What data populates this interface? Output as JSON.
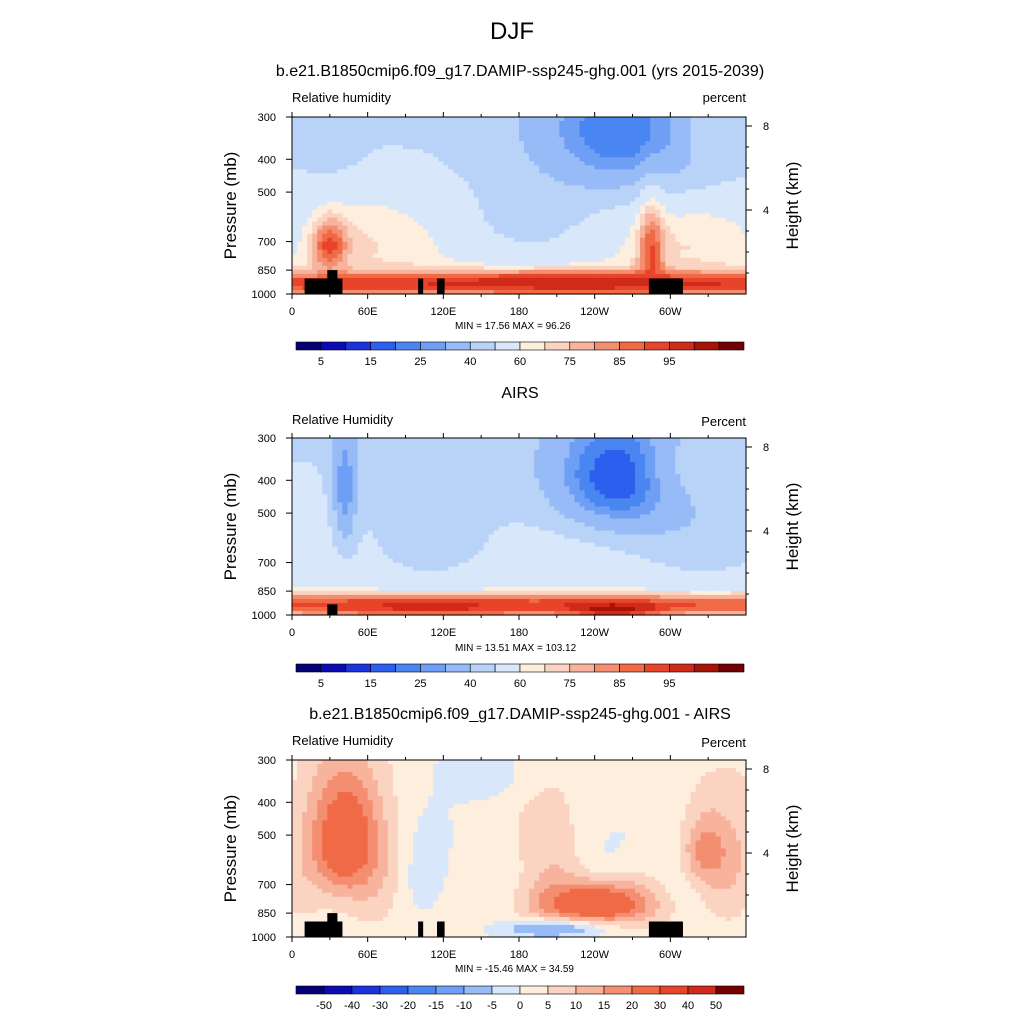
{
  "main_title": "DJF",
  "chart_data": [
    {
      "type": "heatmap",
      "title": "b.e21.B1850cmip6.f09_g17.DAMIP-ssp245-ghg.001 (yrs 2015-2039)",
      "variable_label": "Relative humidity",
      "units_label": "percent",
      "ylabel": "Pressure (mb)",
      "y2label": "Height (km)",
      "x_ticks": [
        "0",
        "60E",
        "120E",
        "180",
        "120W",
        "60W"
      ],
      "x_tick_values": [
        0,
        60,
        120,
        180,
        240,
        300
      ],
      "x_range": [
        0,
        360
      ],
      "y_ticks": [
        "300",
        "400",
        "500",
        "700",
        "850",
        "1000"
      ],
      "y_tick_values": [
        300,
        400,
        500,
        700,
        850,
        1000
      ],
      "y_range": [
        300,
        1000
      ],
      "y2_ticks": [
        "8",
        "4"
      ],
      "y2_tick_values": [
        8,
        4
      ],
      "stats_text": "MIN =  17.56  MAX =  96.26",
      "min": 17.56,
      "max": 96.26,
      "colorbar_labels": [
        "5",
        "15",
        "25",
        "40",
        "60",
        "75",
        "85",
        "95"
      ],
      "colorbar_levels": [
        0,
        5,
        10,
        15,
        20,
        25,
        30,
        40,
        50,
        60,
        65,
        70,
        75,
        80,
        85,
        90,
        95,
        100
      ],
      "terrain_blocks": [
        [
          10,
          40,
          900
        ],
        [
          28,
          36,
          850
        ],
        [
          100,
          104,
          900
        ],
        [
          115,
          121,
          900
        ],
        [
          283,
          310,
          900
        ]
      ],
      "field_features": [
        {
          "lon": 260,
          "p": 330,
          "value": 20,
          "rlon": 70,
          "rp": 160
        },
        {
          "lon": 30,
          "p": 330,
          "value": 45,
          "rlon": 25,
          "rp": 110
        },
        {
          "lon": 330,
          "p": 320,
          "value": 45,
          "rlon": 20,
          "rp": 90
        },
        {
          "lon": 30,
          "p": 720,
          "value": 88,
          "rlon": 14,
          "rp": 120
        },
        {
          "lon": 285,
          "p": 780,
          "value": 87,
          "rlon": 10,
          "rp": 230
        },
        {
          "lon": 220,
          "p": 920,
          "value": 95,
          "rlon": 90,
          "rp": 55
        }
      ]
    },
    {
      "type": "heatmap",
      "title": "AIRS",
      "variable_label": "Relative Humidity",
      "units_label": "Percent",
      "ylabel": "Pressure (mb)",
      "y2label": "Height (km)",
      "x_ticks": [
        "0",
        "60E",
        "120E",
        "180",
        "120W",
        "60W"
      ],
      "x_tick_values": [
        0,
        60,
        120,
        180,
        240,
        300
      ],
      "x_range": [
        0,
        360
      ],
      "y_ticks": [
        "300",
        "400",
        "500",
        "700",
        "850",
        "1000"
      ],
      "y_tick_values": [
        300,
        400,
        500,
        700,
        850,
        1000
      ],
      "y_range": [
        300,
        1000
      ],
      "y2_ticks": [
        "8",
        "4"
      ],
      "y2_tick_values": [
        8,
        4
      ],
      "stats_text": "MIN =  13.51  MAX = 103.12",
      "min": 13.51,
      "max": 103.12,
      "colorbar_labels": [
        "5",
        "15",
        "25",
        "40",
        "60",
        "75",
        "85",
        "95"
      ],
      "colorbar_levels": [
        0,
        5,
        10,
        15,
        20,
        25,
        30,
        40,
        50,
        60,
        65,
        70,
        75,
        80,
        85,
        90,
        95,
        100
      ],
      "terrain_blocks": [
        [
          28,
          36,
          930
        ]
      ],
      "field_features": [
        {
          "lon": 260,
          "p": 390,
          "value": 15,
          "rlon": 60,
          "rp": 180
        },
        {
          "lon": 42,
          "p": 420,
          "value": 25,
          "rlon": 10,
          "rp": 200
        },
        {
          "lon": 330,
          "p": 360,
          "value": 45,
          "rlon": 40,
          "rp": 130
        },
        {
          "lon": 110,
          "p": 950,
          "value": 92,
          "rlon": 80,
          "rp": 55
        },
        {
          "lon": 255,
          "p": 960,
          "value": 98,
          "rlon": 40,
          "rp": 50
        }
      ]
    },
    {
      "type": "heatmap",
      "title": "b.e21.B1850cmip6.f09_g17.DAMIP-ssp245-ghg.001 - AIRS",
      "variable_label": "Relative Humidity",
      "units_label": "Percent",
      "ylabel": "Pressure (mb)",
      "y2label": "Height (km)",
      "x_ticks": [
        "0",
        "60E",
        "120E",
        "180",
        "120W",
        "60W"
      ],
      "x_tick_values": [
        0,
        60,
        120,
        180,
        240,
        300
      ],
      "x_range": [
        0,
        360
      ],
      "y_ticks": [
        "300",
        "400",
        "500",
        "700",
        "850",
        "1000"
      ],
      "y_tick_values": [
        300,
        400,
        500,
        700,
        850,
        1000
      ],
      "y_range": [
        300,
        1000
      ],
      "y2_ticks": [
        "8",
        "4"
      ],
      "y2_tick_values": [
        8,
        4
      ],
      "stats_text": "MIN = -15.46  MAX =  34.59",
      "min": -15.46,
      "max": 34.59,
      "colorbar_labels": [
        "-50",
        "-40",
        "-30",
        "-20",
        "-15",
        "-10",
        "-5",
        "0",
        "5",
        "10",
        "15",
        "20",
        "30",
        "40",
        "50"
      ],
      "colorbar_levels": [
        -60,
        -50,
        -40,
        -30,
        -20,
        -15,
        -10,
        -5,
        0,
        5,
        10,
        15,
        20,
        30,
        40,
        50,
        60
      ],
      "terrain_blocks": [
        [
          10,
          40,
          900
        ],
        [
          28,
          36,
          850
        ],
        [
          100,
          104,
          900
        ],
        [
          115,
          121,
          900
        ],
        [
          283,
          310,
          900
        ]
      ],
      "field_features": [
        {
          "lon": 42,
          "p": 520,
          "value": 28,
          "rlon": 28,
          "rp": 220
        },
        {
          "lon": 240,
          "p": 800,
          "value": 30,
          "rlon": 45,
          "rp": 120
        },
        {
          "lon": 330,
          "p": 560,
          "value": 18,
          "rlon": 20,
          "rp": 140
        },
        {
          "lon": 205,
          "p": 950,
          "value": -10,
          "rlon": 45,
          "rp": 60
        },
        {
          "lon": 150,
          "p": 330,
          "value": -5,
          "rlon": 30,
          "rp": 60
        }
      ]
    }
  ]
}
